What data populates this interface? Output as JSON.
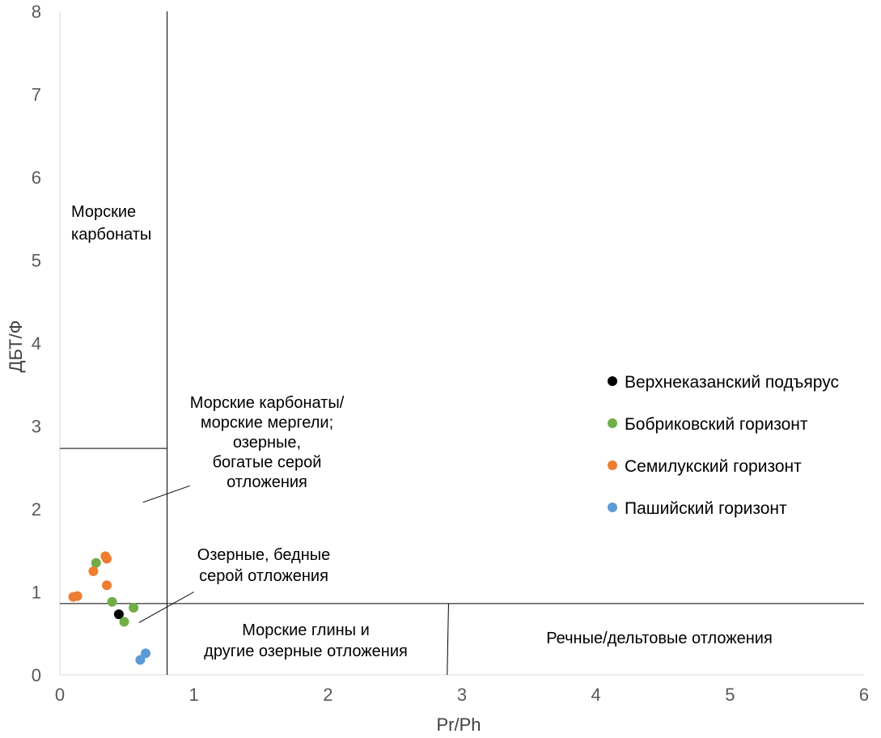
{
  "chart_data": {
    "type": "scatter",
    "xlabel": "Pr/Ph",
    "ylabel": "ДБТ/Ф",
    "xlim": [
      0,
      6
    ],
    "ylim": [
      0,
      8
    ],
    "x_ticks": [
      "0",
      "1",
      "2",
      "3",
      "4",
      "5",
      "6"
    ],
    "y_ticks": [
      "0",
      "1",
      "2",
      "3",
      "4",
      "5",
      "6",
      "7",
      "8"
    ],
    "grid": false,
    "legend_position": "right",
    "series": [
      {
        "name": "Верхнеказанский подъярус",
        "color": "#000000",
        "points": [
          [
            0.44,
            0.73
          ]
        ]
      },
      {
        "name": "Бобриковский горизонт",
        "color": "#70AD47",
        "points": [
          [
            0.27,
            1.35
          ],
          [
            0.39,
            0.88
          ],
          [
            0.55,
            0.81
          ],
          [
            0.48,
            0.64
          ]
        ]
      },
      {
        "name": "Семилукский горизонт",
        "color": "#ED7D31",
        "points": [
          [
            0.34,
            1.43
          ],
          [
            0.35,
            1.4
          ],
          [
            0.25,
            1.25
          ],
          [
            0.35,
            1.08
          ],
          [
            0.1,
            0.94
          ],
          [
            0.13,
            0.95
          ]
        ]
      },
      {
        "name": "Пашийский горизонт",
        "color": "#5B9BD5",
        "points": [
          [
            0.64,
            0.26
          ],
          [
            0.6,
            0.18
          ]
        ]
      }
    ],
    "boundaries": [
      {
        "from": [
          0.8,
          0
        ],
        "to": [
          0.8,
          8
        ]
      },
      {
        "from": [
          0,
          2.73
        ],
        "to": [
          0.8,
          2.73
        ]
      },
      {
        "from": [
          0,
          0.86
        ],
        "to": [
          6,
          0.86
        ]
      },
      {
        "from": [
          2.89,
          0
        ],
        "to": [
          2.9,
          0.86
        ]
      }
    ],
    "leader_lines": [
      {
        "from": [
          0.62,
          2.08
        ],
        "to": [
          0.97,
          2.28
        ]
      },
      {
        "from": [
          0.59,
          0.63
        ],
        "to": [
          1.0,
          1.0
        ]
      }
    ],
    "regions": [
      {
        "lines": [
          "Морские",
          "карбонаты"
        ]
      },
      {
        "lines": [
          "Морские  карбонаты/",
          "морские мергели;",
          "озерные,",
          "богатые серой",
          "отложения"
        ]
      },
      {
        "lines": [
          "Озерные, бедные",
          "серой отложения"
        ]
      },
      {
        "lines": [
          "Морские глины и",
          "другие озерные отложения"
        ]
      },
      {
        "lines": [
          "Речные/дельтовые отложения"
        ]
      }
    ]
  }
}
